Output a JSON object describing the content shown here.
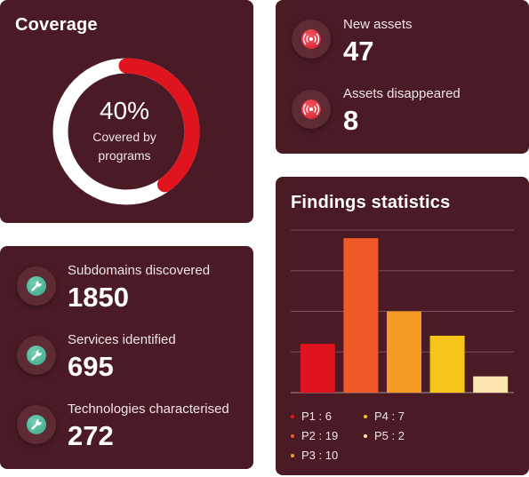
{
  "coverage": {
    "title": "Coverage",
    "percent": 40,
    "percent_label": "40%",
    "subtitle_line1": "Covered by",
    "subtitle_line2": "programs",
    "colors": {
      "filled": "#e0141f",
      "track": "#ffffff"
    }
  },
  "assets": {
    "items": [
      {
        "label": "New assets",
        "value": "47",
        "icon": "broadcast-icon"
      },
      {
        "label": "Assets disappeared",
        "value": "8",
        "icon": "broadcast-icon"
      }
    ]
  },
  "discovery": {
    "items": [
      {
        "label": "Subdomains discovered",
        "value": "1850",
        "icon": "wrench-icon"
      },
      {
        "label": "Services identified",
        "value": "695",
        "icon": "wrench-icon"
      },
      {
        "label": "Technologies characterised",
        "value": "272",
        "icon": "wrench-icon"
      }
    ]
  },
  "findings": {
    "title": "Findings statistics",
    "legend": [
      {
        "label": "P1 : 6",
        "color": "#e0141f"
      },
      {
        "label": "P2 : 19",
        "color": "#f05a28"
      },
      {
        "label": "P3 : 10",
        "color": "#f59a23"
      },
      {
        "label": "P4 : 7",
        "color": "#f5c518"
      },
      {
        "label": "P5 : 2",
        "color": "#fde7b0"
      }
    ]
  },
  "chart_data": {
    "type": "bar",
    "title": "Findings statistics",
    "categories": [
      "P1",
      "P2",
      "P3",
      "P4",
      "P5"
    ],
    "values": [
      6,
      19,
      10,
      7,
      2
    ],
    "colors": [
      "#e0141f",
      "#f05a28",
      "#f59a23",
      "#f5c518",
      "#fde7b0"
    ],
    "ylim": [
      0,
      20
    ],
    "grid": true,
    "legend": "bottom"
  }
}
